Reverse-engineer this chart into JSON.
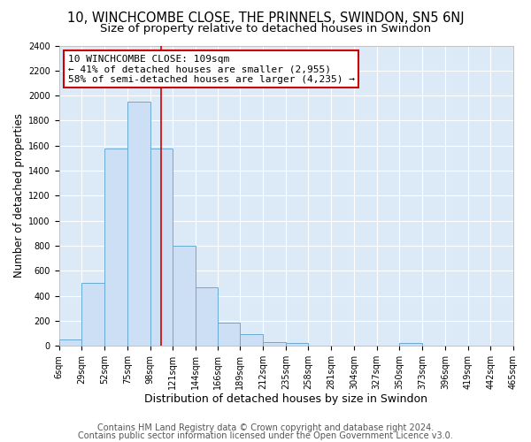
{
  "title": "10, WINCHCOMBE CLOSE, THE PRINNELS, SWINDON, SN5 6NJ",
  "subtitle": "Size of property relative to detached houses in Swindon",
  "xlabel": "Distribution of detached houses by size in Swindon",
  "ylabel": "Number of detached properties",
  "bar_color": "#ccdff5",
  "bar_edge_color": "#6aaad4",
  "axes_bg_color": "#dce9f7",
  "fig_bg_color": "#ffffff",
  "grid_color": "#ffffff",
  "vline_x": 109,
  "vline_color": "#cc0000",
  "annotation_text": "10 WINCHCOMBE CLOSE: 109sqm\n← 41% of detached houses are smaller (2,955)\n58% of semi-detached houses are larger (4,235) →",
  "annotation_box_facecolor": "#ffffff",
  "annotation_box_edgecolor": "#cc0000",
  "footer1": "Contains HM Land Registry data © Crown copyright and database right 2024.",
  "footer2": "Contains public sector information licensed under the Open Government Licence v3.0.",
  "bin_edges": [
    6,
    29,
    52,
    75,
    98,
    121,
    144,
    166,
    189,
    212,
    235,
    258,
    281,
    304,
    327,
    350,
    373,
    396,
    419,
    442,
    465
  ],
  "bar_heights": [
    50,
    500,
    1580,
    1950,
    1580,
    800,
    470,
    185,
    95,
    30,
    25,
    0,
    0,
    0,
    0,
    20,
    0,
    0,
    0,
    0
  ],
  "ylim": [
    0,
    2400
  ],
  "yticks": [
    0,
    200,
    400,
    600,
    800,
    1000,
    1200,
    1400,
    1600,
    1800,
    2000,
    2200,
    2400
  ],
  "title_fontsize": 10.5,
  "subtitle_fontsize": 9.5,
  "xlabel_fontsize": 9,
  "ylabel_fontsize": 8.5,
  "tick_label_fontsize": 7,
  "annotation_fontsize": 8,
  "footer_fontsize": 7
}
